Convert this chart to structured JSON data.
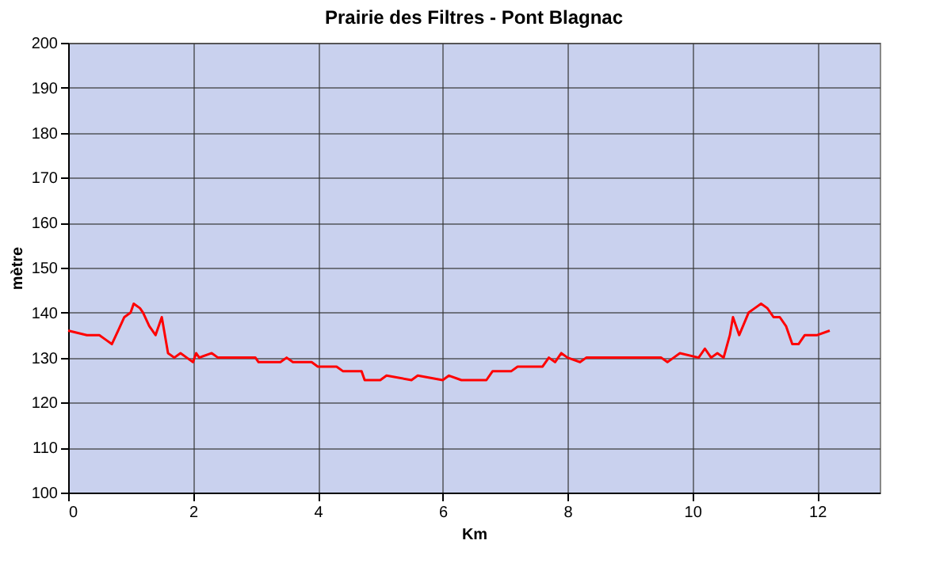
{
  "chart_data": {
    "type": "line",
    "title": "Prairie des Filtres - Pont Blagnac",
    "xlabel": "Km",
    "ylabel": "mètre",
    "x": [
      0,
      0.3,
      0.5,
      0.6,
      0.7,
      0.8,
      0.9,
      1.0,
      1.05,
      1.15,
      1.2,
      1.3,
      1.4,
      1.5,
      1.6,
      1.7,
      1.8,
      1.9,
      2.0,
      2.05,
      2.1,
      2.3,
      2.4,
      3.0,
      3.05,
      3.4,
      3.5,
      3.6,
      3.9,
      4.0,
      4.3,
      4.4,
      4.7,
      4.75,
      5.0,
      5.1,
      5.5,
      5.6,
      6.0,
      6.1,
      6.3,
      6.7,
      6.8,
      7.1,
      7.2,
      7.6,
      7.7,
      7.8,
      7.9,
      8.0,
      8.2,
      8.3,
      9.5,
      9.6,
      9.7,
      9.8,
      10.1,
      10.2,
      10.3,
      10.4,
      10.5,
      10.6,
      10.65,
      10.75,
      10.9,
      11.0,
      11.1,
      11.2,
      11.3,
      11.4,
      11.5,
      11.6,
      11.7,
      11.8,
      11.9,
      12.0,
      12.2
    ],
    "series": [
      {
        "color": "#ff0000",
        "values": [
          136,
          135,
          135,
          134,
          133,
          136,
          139,
          140,
          142,
          141,
          140,
          137,
          135,
          139,
          131,
          130,
          131,
          130,
          129,
          131,
          130,
          131,
          130,
          130,
          129,
          129,
          130,
          129,
          129,
          128,
          128,
          127,
          127,
          125,
          125,
          126,
          125,
          126,
          125,
          126,
          125,
          125,
          127,
          127,
          128,
          128,
          130,
          129,
          131,
          130,
          129,
          130,
          130,
          129,
          130,
          131,
          130,
          132,
          130,
          131,
          130,
          135,
          139,
          135,
          140,
          141,
          142,
          141,
          139,
          139,
          137,
          133,
          133,
          135,
          135,
          135,
          136
        ]
      }
    ],
    "xlim": [
      0,
      13
    ],
    "xticks": [
      0,
      2,
      4,
      6,
      8,
      10,
      12
    ],
    "ylim": [
      100,
      200
    ],
    "yticks": [
      100,
      110,
      120,
      130,
      140,
      150,
      160,
      170,
      180,
      190,
      200
    ],
    "grid": true,
    "marker": "none",
    "line_style": "solid"
  }
}
